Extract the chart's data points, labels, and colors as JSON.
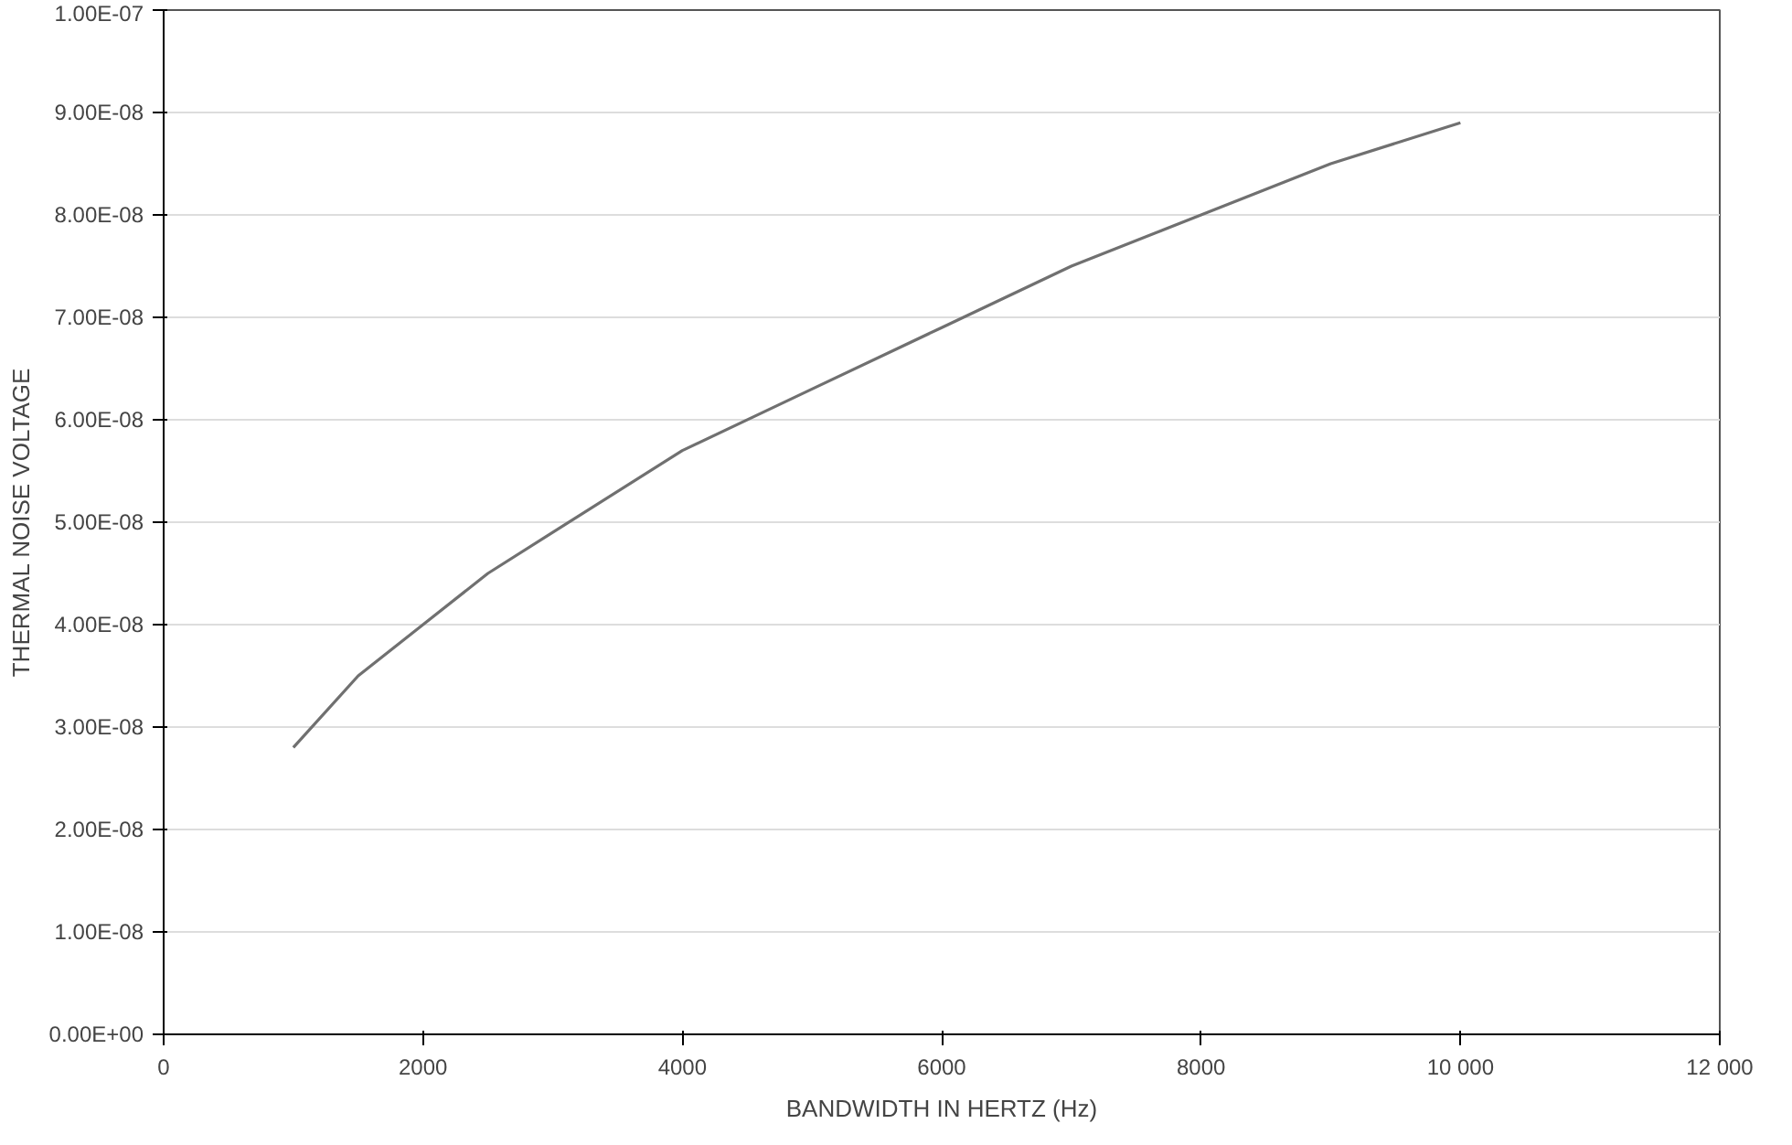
{
  "chart_data": {
    "type": "line",
    "xlabel": "BANDWIDTH IN HERTZ (Hz)",
    "ylabel": "THERMAL NOISE VOLTAGE",
    "x": [
      1000,
      1500,
      2000,
      2500,
      3000,
      4000,
      5000,
      6000,
      7000,
      8000,
      9000,
      10000
    ],
    "series": [
      {
        "color": "#707070",
        "values": [
          2.8e-08,
          3.5e-08,
          4e-08,
          4.5e-08,
          4.9e-08,
          5.7e-08,
          6.3e-08,
          6.9e-08,
          7.5e-08,
          8e-08,
          8.5e-08,
          8.9e-08
        ]
      }
    ],
    "xlim": [
      0,
      12000
    ],
    "ylim": [
      0,
      1e-07
    ],
    "xticks": [
      0,
      2000,
      4000,
      6000,
      8000,
      {
        "value": 10000,
        "label": "10 000"
      },
      {
        "value": 12000,
        "label": "12 000"
      }
    ],
    "yticks": [
      {
        "value": 0,
        "label": "0.00E+00"
      },
      {
        "value": 1e-08,
        "label": "1.00E-08"
      },
      {
        "value": 2e-08,
        "label": "2.00E-08"
      },
      {
        "value": 3e-08,
        "label": "3.00E-08"
      },
      {
        "value": 4e-08,
        "label": "4.00E-08"
      },
      {
        "value": 5e-08,
        "label": "5.00E-08"
      },
      {
        "value": 6e-08,
        "label": "6.00E-08"
      },
      {
        "value": 7e-08,
        "label": "7.00E-08"
      },
      {
        "value": 8e-08,
        "label": "8.00E-08"
      },
      {
        "value": 9e-08,
        "label": "9.00E-08"
      },
      {
        "value": 1e-07,
        "label": "1.00E-07"
      }
    ],
    "grid": "y",
    "marker": "none",
    "line_style": "solid"
  }
}
